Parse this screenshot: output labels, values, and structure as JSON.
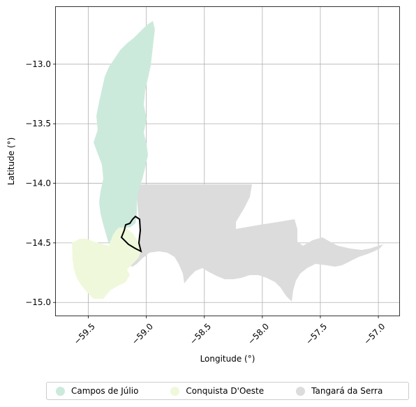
{
  "chart_data": {
    "type": "map",
    "xlabel": "Longitude (°)",
    "ylabel": "Latitude (°)",
    "xlim": [
      -59.78,
      -56.82
    ],
    "ylim": [
      -15.11,
      -12.52
    ],
    "xticks": [
      "−59.5",
      "−59.0",
      "−58.5",
      "−58.0",
      "−57.5",
      "−57.0"
    ],
    "xtick_values": [
      -59.5,
      -59.0,
      -58.5,
      -58.0,
      -57.5,
      -57.0
    ],
    "yticks": [
      "−13.0",
      "−13.5",
      "−14.0",
      "−14.5",
      "−15.0"
    ],
    "ytick_values": [
      -13.0,
      -13.5,
      -14.0,
      -14.5,
      -15.0
    ],
    "grid": true,
    "legend_placement": "bottom-center",
    "regions": [
      {
        "name": "Campos de Júlio",
        "color": "#cceadc"
      },
      {
        "name": "Conquista D'Oeste",
        "color": "#eff8da"
      },
      {
        "name": "Tangará da Serra",
        "color": "#dcdcdc"
      }
    ],
    "highlight_outline_color": "#000000"
  }
}
